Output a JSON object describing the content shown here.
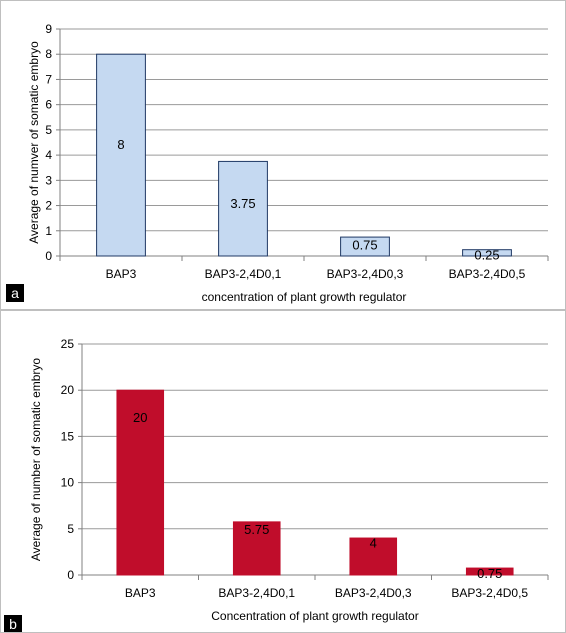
{
  "chart_data": [
    {
      "type": "bar",
      "panel": "a",
      "categories": [
        "BAP3",
        "BAP3-2,4D0,1",
        "BAP3-2,4D0,3",
        "BAP3-2,4D0,5"
      ],
      "values": [
        8,
        3.75,
        0.75,
        0.25
      ],
      "value_labels": [
        "8",
        "3.75",
        "0.75",
        "0.25"
      ],
      "xlabel": "concentration of plant growth regulator",
      "ylabel": "Average of numver of somatic embryo",
      "ylim": [
        0,
        9
      ],
      "yticks": [
        "0",
        "1",
        "2",
        "3",
        "4",
        "5",
        "6",
        "7",
        "8",
        "9"
      ],
      "grid": true,
      "bar_color": "#c5d9f1",
      "bar_stroke": "#1f3864"
    },
    {
      "type": "bar",
      "panel": "b",
      "categories": [
        "BAP3",
        "BAP3-2,4D0,1",
        "BAP3-2,4D0,3",
        "BAP3-2,4D0,5"
      ],
      "values": [
        20,
        5.75,
        4,
        0.75
      ],
      "value_labels": [
        "20",
        "5.75",
        "4",
        "0.75"
      ],
      "xlabel": "Concentration of plant growth regulator",
      "ylabel": "Average of number of somatic embryo",
      "ylim": [
        0,
        25
      ],
      "yticks": [
        "0",
        "5",
        "10",
        "15",
        "20",
        "25"
      ],
      "grid": true,
      "bar_color": "#c00d2b",
      "bar_stroke": "#c00d2b"
    }
  ]
}
